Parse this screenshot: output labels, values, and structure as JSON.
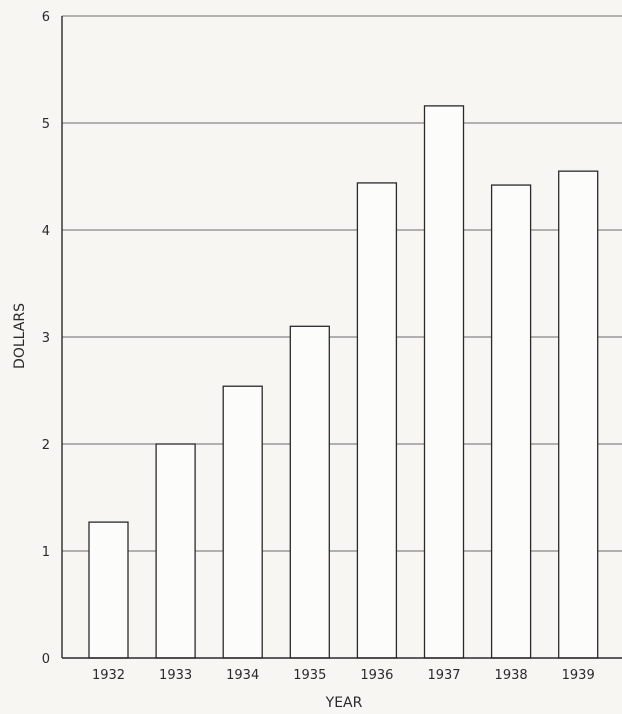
{
  "chart_data": {
    "type": "bar",
    "categories": [
      "1932",
      "1933",
      "1934",
      "1935",
      "1936",
      "1937",
      "1938",
      "1939"
    ],
    "values": [
      1.27,
      2.0,
      2.54,
      3.1,
      4.44,
      5.16,
      4.42,
      4.55
    ],
    "title": "",
    "xlabel": "YEAR",
    "ylabel": "DOLLARS",
    "ylim": [
      0,
      6
    ],
    "yticks": [
      "0",
      "1",
      "2",
      "3",
      "4",
      "5",
      "6"
    ],
    "grid": true,
    "colors": {
      "bar_fill": "#fcfcfa",
      "bar_stroke": "#2a2a2a",
      "grid": "#3a3a3a",
      "background": "#f7f6f3"
    }
  }
}
